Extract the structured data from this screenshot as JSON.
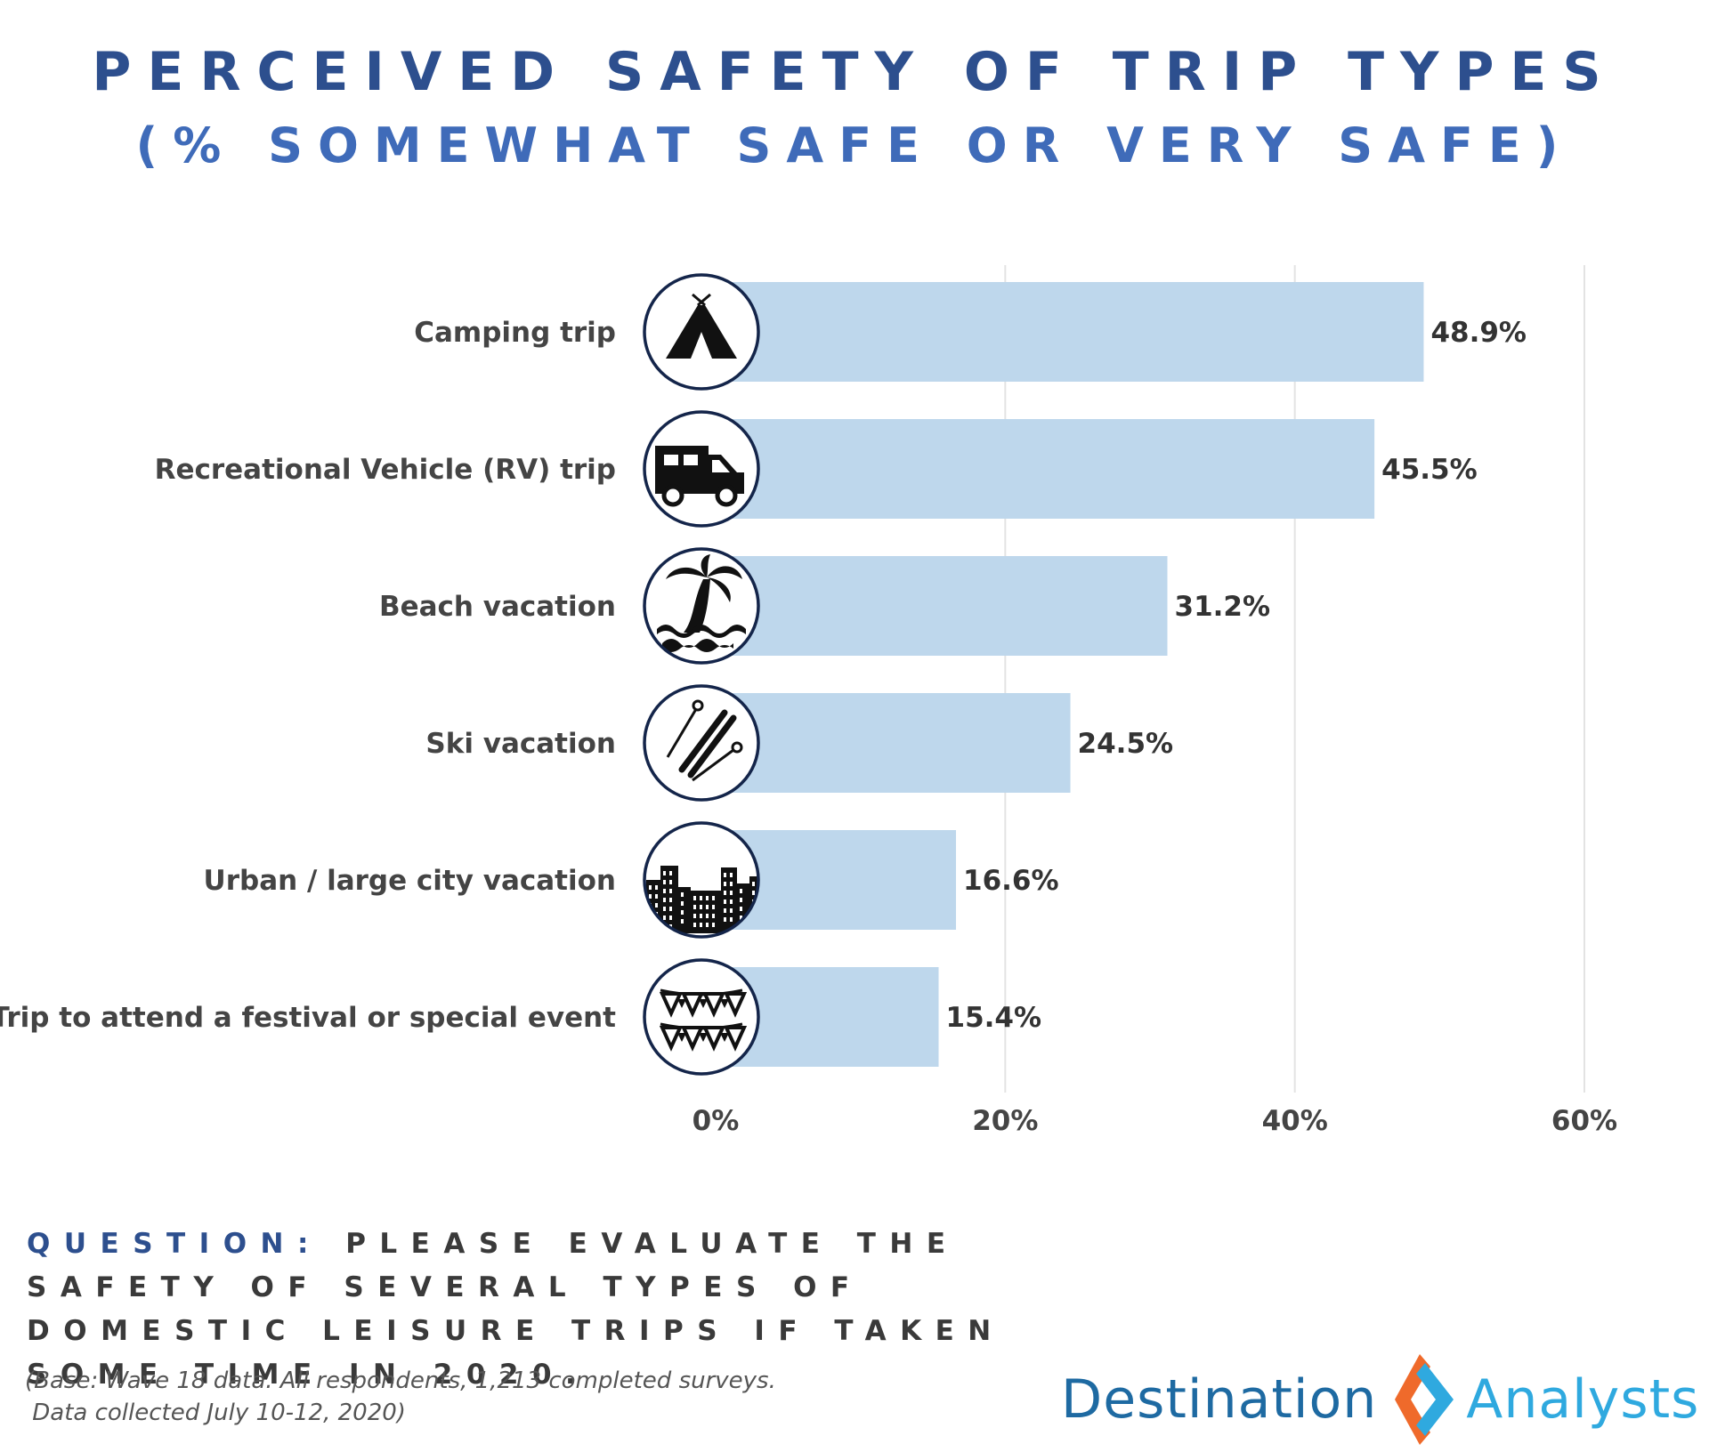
{
  "title_line1": "PERCEIVED SAFETY OF TRIP TYPES",
  "title_line2": "(% SOMEWHAT SAFE OR VERY SAFE)",
  "chart_data": {
    "type": "bar",
    "orientation": "horizontal",
    "title": "PERCEIVED SAFETY OF TRIP TYPES (% SOMEWHAT SAFE OR VERY SAFE)",
    "categories": [
      "Camping trip",
      "Recreational Vehicle (RV) trip",
      "Beach vacation",
      "Ski vacation",
      "Urban  / large city vacation",
      "Trip to attend a festival or special event"
    ],
    "values": [
      48.9,
      45.5,
      31.2,
      24.5,
      16.6,
      15.4
    ],
    "value_labels": [
      "48.9%",
      "45.5%",
      "31.2%",
      "24.5%",
      "16.6%",
      "15.4%"
    ],
    "icons": [
      "tent-icon",
      "rv-icon",
      "palm-tree-icon",
      "ski-icon",
      "city-icon",
      "bunting-icon"
    ],
    "xlim": [
      0,
      60
    ],
    "xticks": [
      0,
      20,
      40,
      60
    ],
    "xtick_labels": [
      "0%",
      "20%",
      "40%",
      "60%"
    ],
    "xlabel": "",
    "ylabel": "",
    "grid": true,
    "bar_color": "#bed7ec"
  },
  "question": {
    "label": "QUESTION:",
    "text": "PLEASE EVALUATE THE SAFETY OF SEVERAL TYPES OF DOMESTIC LEISURE TRIPS IF TAKEN SOME TIME IN 2020."
  },
  "base_note": "(Base: Wave 18 data. All respondents, 1,213 completed surveys.\n Data collected July 10-12, 2020)",
  "logo": {
    "left": "Destination",
    "right": "Analysts"
  },
  "colors": {
    "title_dark": "#2d4f8e",
    "title_light": "#3f6bb9",
    "logo_orange": "#ef6a2b",
    "logo_blue": "#2fa9df"
  }
}
